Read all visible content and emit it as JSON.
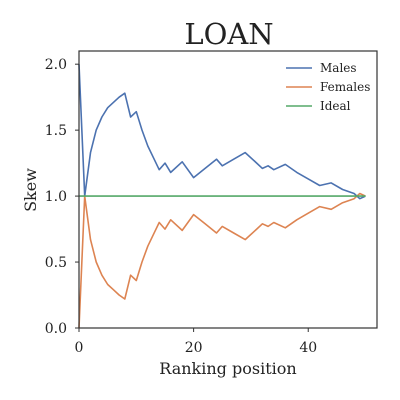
{
  "chart_data": {
    "type": "line",
    "title": "LOAN",
    "xlabel": "Ranking position",
    "ylabel": "Skew",
    "xlim": [
      0,
      52
    ],
    "ylim": [
      0.0,
      2.1
    ],
    "xticks": [
      0,
      20,
      40
    ],
    "xtick_labels": [
      "0",
      "20",
      "40"
    ],
    "yticks": [
      0.0,
      0.5,
      1.0,
      1.5,
      2.0
    ],
    "ytick_labels": [
      "0.0",
      "0.5",
      "1.0",
      "1.5",
      "2.0"
    ],
    "grid": false,
    "legend_position": "top-right",
    "series": [
      {
        "name": "Males",
        "color": "#4c72b0",
        "x": [
          0,
          1,
          2,
          3,
          4,
          5,
          6,
          7,
          8,
          9,
          10,
          11,
          12,
          13,
          14,
          15,
          16,
          18,
          20,
          22,
          24,
          25,
          27,
          29,
          31,
          32,
          33,
          34,
          36,
          38,
          40,
          42,
          44,
          46,
          48,
          49,
          50
        ],
        "y": [
          2.0,
          1.0,
          1.33,
          1.5,
          1.6,
          1.67,
          1.71,
          1.75,
          1.78,
          1.6,
          1.64,
          1.5,
          1.38,
          1.29,
          1.2,
          1.25,
          1.18,
          1.26,
          1.14,
          1.21,
          1.28,
          1.23,
          1.28,
          1.33,
          1.25,
          1.21,
          1.23,
          1.2,
          1.24,
          1.18,
          1.13,
          1.08,
          1.1,
          1.05,
          1.02,
          0.98,
          1.0
        ]
      },
      {
        "name": "Females",
        "color": "#dd8452",
        "x": [
          0,
          1,
          2,
          3,
          4,
          5,
          6,
          7,
          8,
          9,
          10,
          11,
          12,
          13,
          14,
          15,
          16,
          18,
          20,
          22,
          24,
          25,
          27,
          29,
          31,
          32,
          33,
          34,
          36,
          38,
          40,
          42,
          44,
          46,
          48,
          49,
          50
        ],
        "y": [
          0.0,
          1.0,
          0.67,
          0.5,
          0.4,
          0.33,
          0.29,
          0.25,
          0.22,
          0.4,
          0.36,
          0.5,
          0.62,
          0.71,
          0.8,
          0.75,
          0.82,
          0.74,
          0.86,
          0.79,
          0.72,
          0.77,
          0.72,
          0.67,
          0.75,
          0.79,
          0.77,
          0.8,
          0.76,
          0.82,
          0.87,
          0.92,
          0.9,
          0.95,
          0.98,
          1.02,
          1.0
        ]
      },
      {
        "name": "Ideal",
        "color": "#55a868",
        "x": [
          0,
          50
        ],
        "y": [
          1.0,
          1.0
        ]
      }
    ]
  }
}
